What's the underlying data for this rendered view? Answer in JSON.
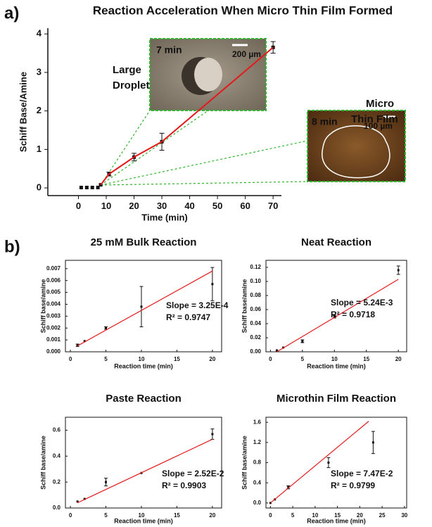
{
  "chart_data": [
    {
      "type": "scatter",
      "panel_label": "a)",
      "title": "Reaction Acceleration When Micro Thin Film Formed",
      "xlabel": "Time (min)",
      "ylabel": "Schiff Base/Amine",
      "xlim": [
        -11,
        73
      ],
      "ylim": [
        -0.2,
        4.15
      ],
      "xticks": [
        0,
        10,
        20,
        30,
        40,
        50,
        60,
        70
      ],
      "yticks": [
        0,
        1,
        2,
        3,
        4
      ],
      "frame": "axes",
      "series": [
        {
          "mode": "markers",
          "color": "#111111",
          "x": [
            1,
            3,
            5,
            7,
            8,
            11,
            20,
            30,
            70
          ],
          "values": [
            0.01,
            0.01,
            0.01,
            0.01,
            0.08,
            0.36,
            0.8,
            1.2,
            3.65
          ],
          "errors": [
            null,
            null,
            null,
            null,
            null,
            0.05,
            0.1,
            0.22,
            0.15
          ]
        },
        {
          "mode": "line",
          "color": "#e31a1c",
          "x": [
            8,
            11,
            20,
            30,
            70
          ],
          "values": [
            0.08,
            0.36,
            0.8,
            1.2,
            3.65
          ]
        }
      ],
      "annotations": [
        "Large",
        "Droplet",
        "Micro",
        "Thin Film",
        "7 min",
        "200 µm",
        "8 min",
        "100 µm"
      ]
    },
    {
      "type": "scatter",
      "panel_label": "b)",
      "title": "25 mM Bulk Reaction",
      "xlabel": "Reaction time (min)",
      "ylabel": "Schiff base/amine",
      "xlim": [
        -0.7,
        21.3
      ],
      "ylim": [
        0,
        0.0077
      ],
      "xticks": [
        0,
        5,
        10,
        15,
        20
      ],
      "yticks": [
        {
          "value": 0,
          "label": "0.000"
        },
        0.001,
        0.002,
        0.003,
        0.004,
        0.005,
        0.006,
        0.007
      ],
      "frame": "box",
      "series": [
        {
          "mode": "markers",
          "color": "#111111",
          "x": [
            1,
            2,
            5,
            10,
            20
          ],
          "values": [
            0.00055,
            0.0009,
            0.002,
            0.0038,
            0.0057
          ],
          "errors": [
            0.0001,
            null,
            0.0001,
            0.0017,
            0.0014
          ]
        },
        {
          "mode": "line",
          "color": "#e31a1c",
          "x": [
            1,
            20
          ],
          "values": [
            0.0005,
            0.0068
          ]
        }
      ],
      "annotations": [
        "Slope = 3.25E-4",
        "R² = 0.9747"
      ]
    },
    {
      "type": "scatter",
      "title": "Neat Reaction",
      "xlabel": "Reaction time (min)",
      "ylabel": "Schiff base/amine",
      "xlim": [
        -0.7,
        21.3
      ],
      "ylim": [
        0,
        0.13
      ],
      "xticks": [
        0,
        5,
        10,
        15,
        20
      ],
      "yticks": [
        {
          "value": 0,
          "label": "0.00"
        },
        0.02,
        0.04,
        0.06,
        0.08,
        {
          "value": 0.1,
          "label": "0.10"
        },
        0.12
      ],
      "frame": "box",
      "series": [
        {
          "mode": "markers",
          "color": "#111111",
          "x": [
            1,
            2,
            5,
            10,
            20
          ],
          "values": [
            0.002,
            0.006,
            0.015,
            0.05,
            0.116
          ],
          "errors": [
            null,
            null,
            0.002,
            0.002,
            0.006
          ]
        },
        {
          "mode": "line",
          "color": "#e31a1c",
          "x": [
            1,
            20
          ],
          "values": [
            0.0,
            0.103
          ]
        }
      ],
      "annotations": [
        "Slope = 5.24E-3",
        "R² = 0.9718"
      ]
    },
    {
      "type": "scatter",
      "title": "Paste Reaction",
      "xlabel": "Reaction time (min)",
      "ylabel": "Schiff base/amine",
      "xlim": [
        -0.7,
        21.3
      ],
      "ylim": [
        0,
        0.7
      ],
      "xticks": [
        0,
        5,
        10,
        15,
        20
      ],
      "yticks": [
        {
          "value": 0,
          "label": "0.0"
        },
        0.2,
        0.4,
        0.6
      ],
      "frame": "box",
      "series": [
        {
          "mode": "markers",
          "color": "#111111",
          "x": [
            1,
            2,
            5,
            10,
            20
          ],
          "values": [
            0.05,
            0.07,
            0.2,
            0.27,
            0.57
          ],
          "errors": [
            null,
            null,
            0.03,
            null,
            0.04
          ]
        },
        {
          "mode": "line",
          "color": "#e31a1c",
          "x": [
            1,
            20
          ],
          "values": [
            0.04,
            0.53
          ]
        }
      ],
      "annotations": [
        "Slope = 2.52E-2",
        "R² = 0.9903"
      ]
    },
    {
      "type": "scatter",
      "title": "Microthin Film Reaction",
      "xlabel": "Reaction time (min)",
      "ylabel": "Schiff base/amine",
      "xlim": [
        -1,
        30.5
      ],
      "ylim": [
        -0.1,
        1.7
      ],
      "xticks": [
        0,
        5,
        10,
        15,
        20,
        25,
        30
      ],
      "yticks": [
        {
          "value": 0,
          "label": "0.0"
        },
        0.4,
        0.8,
        1.2,
        1.6
      ],
      "frame": "box",
      "series": [
        {
          "mode": "markers",
          "color": "#111111",
          "x": [
            0,
            1,
            4,
            13,
            23
          ],
          "values": [
            0.0,
            0.07,
            0.31,
            0.8,
            1.2
          ],
          "errors": [
            null,
            null,
            0.03,
            0.1,
            0.22
          ]
        },
        {
          "mode": "line",
          "color": "#e31a1c",
          "x": [
            0,
            22
          ],
          "values": [
            0.0,
            1.62
          ]
        }
      ],
      "annotations": [
        "Slope = 7.47E-2",
        "R² = 0.9799"
      ]
    }
  ]
}
